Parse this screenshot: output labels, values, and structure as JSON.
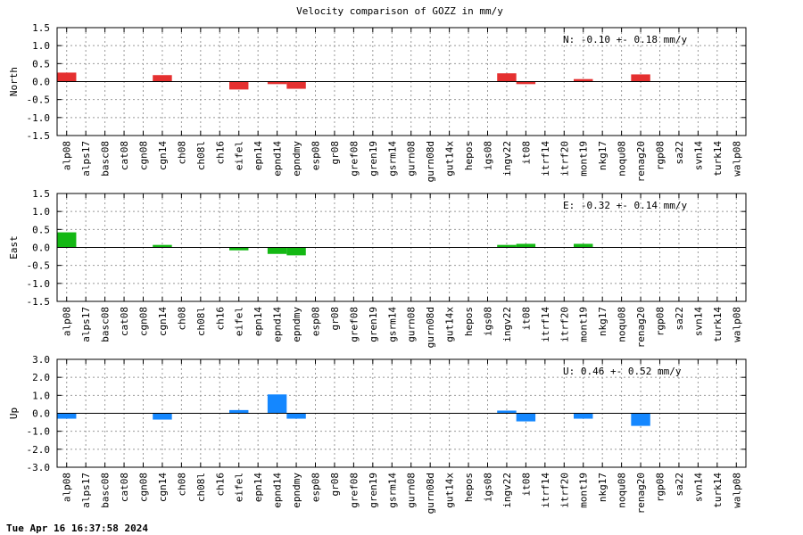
{
  "colors": {
    "north": "#e53030",
    "east": "#14b814",
    "up": "#1487ff",
    "grid": "#999999"
  },
  "timestamp": "Tue Apr 16 16:37:58 2024",
  "chart_data": {
    "type": "bar",
    "title": "Velocity comparison of GOZZ in mm/y",
    "categories": [
      "alp08",
      "alps17",
      "basc08",
      "cat08",
      "cgn08",
      "cgn14",
      "ch08",
      "ch08l",
      "ch16",
      "eifel",
      "epn14",
      "epnd14",
      "epndmy",
      "esp08",
      "gr08",
      "gref08",
      "gren19",
      "gsrm14",
      "gurn08",
      "gurn08d",
      "gut14x",
      "hepos",
      "igs08",
      "ingv22",
      "it08",
      "itrf14",
      "itrf20",
      "mont19",
      "nkg17",
      "noqu08",
      "renag20",
      "rgp08",
      "sa22",
      "svn14",
      "turk14",
      "walp08"
    ],
    "grid": true,
    "panels": [
      {
        "ylabel": "North",
        "color_key": "north",
        "ylim": [
          -1.5,
          1.5
        ],
        "yticks": [
          "1.5",
          "1.0",
          "0.5",
          "0.0",
          "-0.5",
          "-1.0",
          "-1.5"
        ],
        "yticks_values": [
          1.5,
          1.0,
          0.5,
          0.0,
          -0.5,
          -1.0,
          -1.5
        ],
        "annotation": "N:  -0.10 +-  0.18 mm/y",
        "values": [
          0.25,
          null,
          null,
          null,
          null,
          0.18,
          null,
          null,
          null,
          -0.22,
          null,
          -0.07,
          -0.2,
          null,
          null,
          null,
          null,
          null,
          null,
          null,
          null,
          null,
          null,
          0.23,
          -0.07,
          null,
          null,
          0.07,
          null,
          null,
          0.2,
          null,
          null,
          null,
          null,
          null
        ]
      },
      {
        "ylabel": "East",
        "color_key": "east",
        "ylim": [
          -1.5,
          1.5
        ],
        "yticks": [
          "1.5",
          "1.0",
          "0.5",
          "0.0",
          "-0.5",
          "-1.0",
          "-1.5"
        ],
        "yticks_values": [
          1.5,
          1.0,
          0.5,
          0.0,
          -0.5,
          -1.0,
          -1.5
        ],
        "annotation": "E:  -0.32 +-  0.14 mm/y",
        "values": [
          0.42,
          null,
          null,
          null,
          null,
          0.07,
          null,
          null,
          null,
          -0.08,
          null,
          -0.18,
          -0.22,
          null,
          null,
          null,
          null,
          null,
          null,
          null,
          null,
          null,
          null,
          0.07,
          0.1,
          null,
          null,
          0.1,
          null,
          null,
          null,
          null,
          null,
          null,
          null,
          null
        ]
      },
      {
        "ylabel": "Up",
        "color_key": "up",
        "ylim": [
          -3.0,
          3.0
        ],
        "yticks": [
          "3.0",
          "2.0",
          "1.0",
          "0.0",
          "-1.0",
          "-2.0",
          "-3.0"
        ],
        "yticks_values": [
          3.0,
          2.0,
          1.0,
          0.0,
          -1.0,
          -2.0,
          -3.0
        ],
        "annotation": "U:   0.46 +-  0.52 mm/y",
        "values": [
          -0.3,
          null,
          null,
          null,
          null,
          -0.35,
          null,
          null,
          null,
          0.18,
          null,
          1.05,
          -0.3,
          null,
          null,
          null,
          null,
          null,
          null,
          null,
          null,
          null,
          null,
          0.15,
          -0.45,
          null,
          null,
          -0.3,
          null,
          null,
          -0.7,
          null,
          null,
          null,
          null,
          null
        ]
      }
    ]
  }
}
